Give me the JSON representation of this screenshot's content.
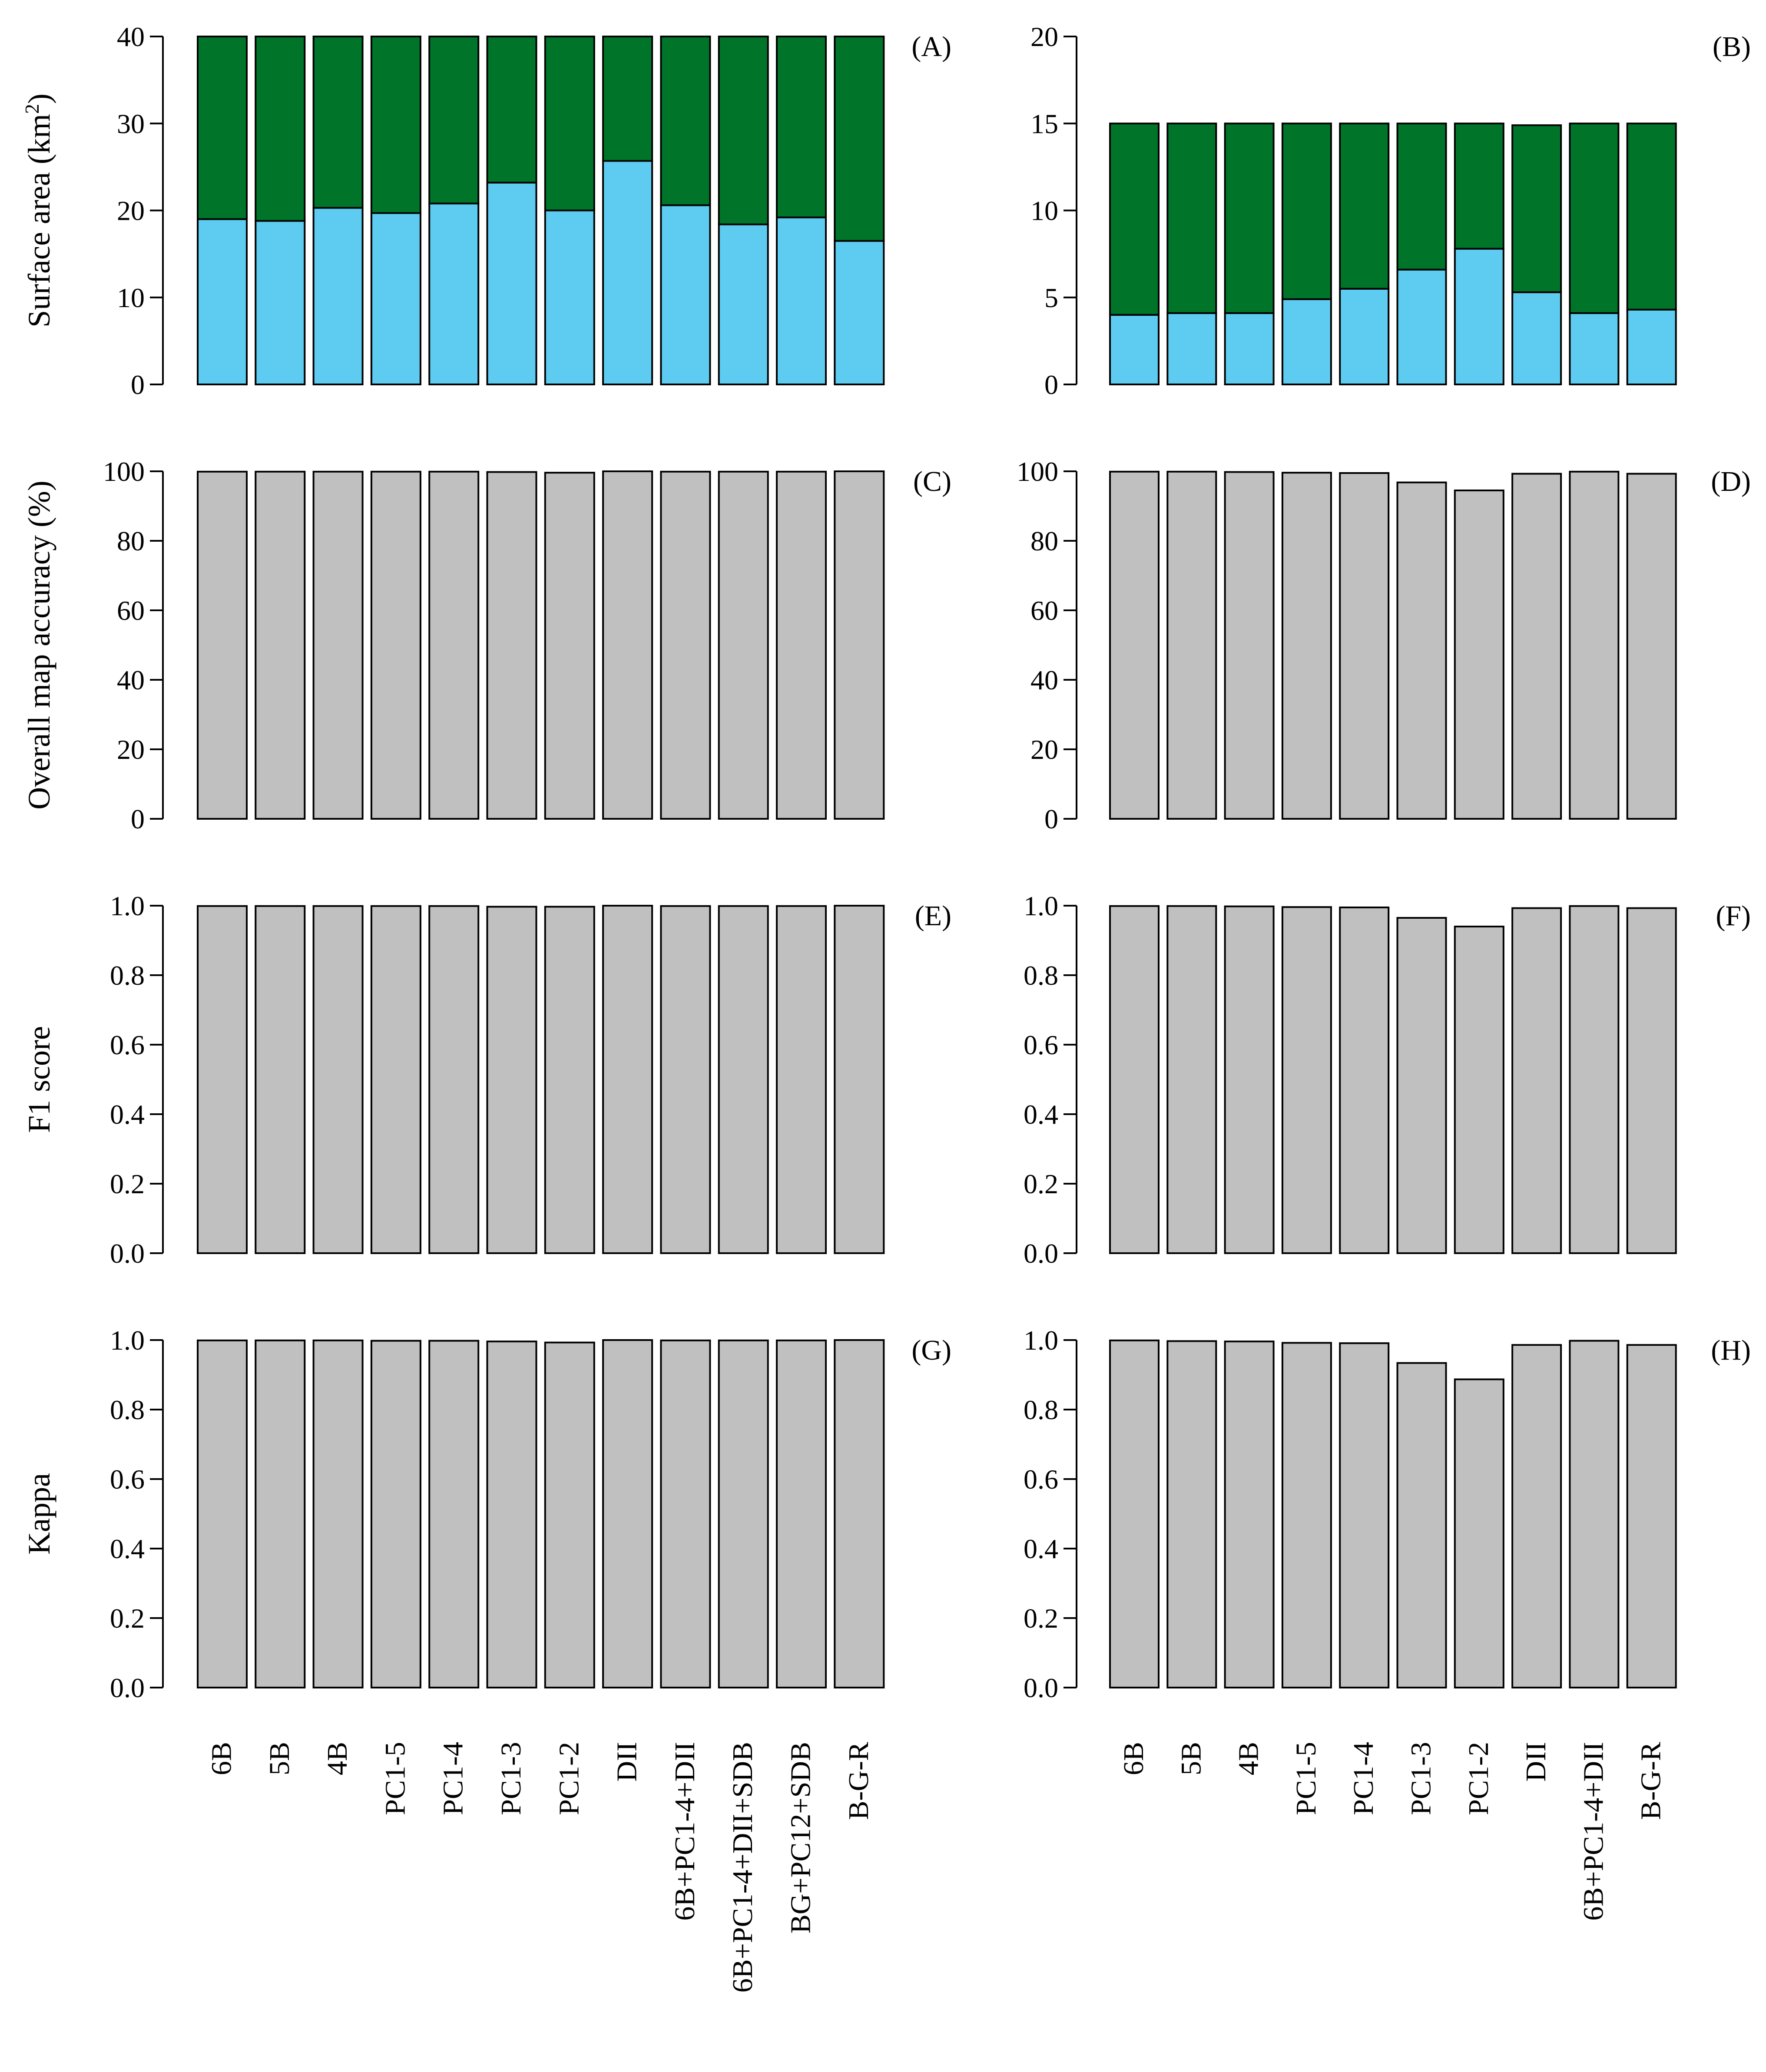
{
  "colors": {
    "water": "#5ecbf0",
    "vegetation": "#00752a",
    "accuracy": "#c0c0c0",
    "outline": "#000000"
  },
  "chart_data": [
    {
      "id": "A",
      "panel_label": "(A)",
      "type": "bar",
      "stacked": true,
      "ylabel": "Surface area (km",
      "ylabel_sup": "2",
      "ylabel_after": ")",
      "ylim": [
        0,
        40
      ],
      "yticks": [
        "0",
        "10",
        "20",
        "30",
        "40"
      ],
      "categories": [
        "6B",
        "5B",
        "4B",
        "PC1-5",
        "PC1-4",
        "PC1-3",
        "PC1-2",
        "DII",
        "6B+PC1-4+DII",
        "6B+PC1-4+DII+SDB",
        "BG+PC12+SDB",
        "B-G-R"
      ],
      "series": [
        {
          "color_key": "water",
          "values": [
            19.0,
            18.8,
            20.3,
            19.7,
            20.8,
            23.2,
            20.0,
            25.7,
            20.6,
            18.4,
            19.2,
            16.5
          ]
        },
        {
          "color_key": "vegetation",
          "values": [
            21.0,
            21.2,
            19.7,
            20.3,
            19.2,
            16.8,
            20.0,
            14.3,
            19.4,
            21.6,
            20.8,
            23.5
          ]
        }
      ]
    },
    {
      "id": "B",
      "panel_label": "(B)",
      "type": "bar",
      "stacked": true,
      "ylabel": "",
      "ylim": [
        0,
        20
      ],
      "yticks": [
        "0",
        "5",
        "10",
        "15",
        "20"
      ],
      "categories": [
        "6B",
        "5B",
        "4B",
        "PC1-5",
        "PC1-4",
        "PC1-3",
        "PC1-2",
        "DII",
        "6B+PC1-4+DII",
        "B-G-R"
      ],
      "series": [
        {
          "color_key": "water",
          "values": [
            4.0,
            4.1,
            4.1,
            4.9,
            5.5,
            6.6,
            7.8,
            5.3,
            4.1,
            4.3
          ]
        },
        {
          "color_key": "vegetation",
          "values": [
            11.0,
            10.9,
            10.9,
            10.1,
            9.5,
            8.4,
            7.2,
            9.6,
            10.9,
            10.7
          ]
        }
      ]
    },
    {
      "id": "C",
      "panel_label": "(C)",
      "type": "bar",
      "stacked": false,
      "ylabel": "Overall map accuracy (%)",
      "ylim": [
        0,
        100
      ],
      "yticks": [
        "0",
        "20",
        "40",
        "60",
        "80",
        "100"
      ],
      "categories": [
        "6B",
        "5B",
        "4B",
        "PC1-5",
        "PC1-4",
        "PC1-3",
        "PC1-2",
        "DII",
        "6B+PC1-4+DII",
        "6B+PC1-4+DII+SDB",
        "BG+PC12+SDB",
        "B-G-R"
      ],
      "series": [
        {
          "color_key": "accuracy",
          "values": [
            99.9,
            99.9,
            99.9,
            99.9,
            99.9,
            99.8,
            99.6,
            100.0,
            99.9,
            99.9,
            99.9,
            100.0
          ]
        }
      ]
    },
    {
      "id": "D",
      "panel_label": "(D)",
      "type": "bar",
      "stacked": false,
      "ylabel": "",
      "ylim": [
        0,
        100
      ],
      "yticks": [
        "0",
        "20",
        "40",
        "60",
        "80",
        "100"
      ],
      "categories": [
        "6B",
        "5B",
        "4B",
        "PC1-5",
        "PC1-4",
        "PC1-3",
        "PC1-2",
        "DII",
        "6B+PC1-4+DII",
        "B-G-R"
      ],
      "series": [
        {
          "color_key": "accuracy",
          "values": [
            99.9,
            99.9,
            99.8,
            99.6,
            99.5,
            96.8,
            94.5,
            99.3,
            99.9,
            99.3
          ]
        }
      ]
    },
    {
      "id": "E",
      "panel_label": "(E)",
      "type": "bar",
      "stacked": false,
      "ylabel": "F1 score",
      "ylim": [
        0,
        1
      ],
      "yticks": [
        "0.0",
        "0.2",
        "0.4",
        "0.6",
        "0.8",
        "1.0"
      ],
      "categories": [
        "6B",
        "5B",
        "4B",
        "PC1-5",
        "PC1-4",
        "PC1-3",
        "PC1-2",
        "DII",
        "6B+PC1-4+DII",
        "6B+PC1-4+DII+SDB",
        "BG+PC12+SDB",
        "B-G-R"
      ],
      "series": [
        {
          "color_key": "accuracy",
          "values": [
            0.999,
            0.999,
            0.999,
            0.999,
            0.999,
            0.997,
            0.997,
            1.0,
            0.999,
            0.999,
            0.999,
            1.0
          ]
        }
      ]
    },
    {
      "id": "F",
      "panel_label": "(F)",
      "type": "bar",
      "stacked": false,
      "ylabel": "",
      "ylim": [
        0,
        1
      ],
      "yticks": [
        "0.0",
        "0.2",
        "0.4",
        "0.6",
        "0.8",
        "1.0"
      ],
      "categories": [
        "6B",
        "5B",
        "4B",
        "PC1-5",
        "PC1-4",
        "PC1-3",
        "PC1-2",
        "DII",
        "6B+PC1-4+DII",
        "B-G-R"
      ],
      "series": [
        {
          "color_key": "accuracy",
          "values": [
            0.999,
            0.999,
            0.998,
            0.996,
            0.995,
            0.965,
            0.94,
            0.993,
            0.999,
            0.993
          ]
        }
      ]
    },
    {
      "id": "G",
      "panel_label": "(G)",
      "type": "bar",
      "stacked": false,
      "ylabel": "Kappa",
      "ylim": [
        0,
        1
      ],
      "yticks": [
        "0.0",
        "0.2",
        "0.4",
        "0.6",
        "0.8",
        "1.0"
      ],
      "categories": [
        "6B",
        "5B",
        "4B",
        "PC1-5",
        "PC1-4",
        "PC1-3",
        "PC1-2",
        "DII",
        "6B+PC1-4+DII",
        "6B+PC1-4+DII+SDB",
        "BG+PC12+SDB",
        "B-G-R"
      ],
      "series": [
        {
          "color_key": "accuracy",
          "values": [
            0.999,
            0.999,
            0.999,
            0.998,
            0.998,
            0.996,
            0.993,
            1.0,
            0.999,
            0.999,
            0.999,
            1.0
          ]
        }
      ]
    },
    {
      "id": "H",
      "panel_label": "(H)",
      "type": "bar",
      "stacked": false,
      "ylabel": "",
      "ylim": [
        0,
        1
      ],
      "yticks": [
        "0.0",
        "0.2",
        "0.4",
        "0.6",
        "0.8",
        "1.0"
      ],
      "categories": [
        "6B",
        "5B",
        "4B",
        "PC1-5",
        "PC1-4",
        "PC1-3",
        "PC1-2",
        "DII",
        "6B+PC1-4+DII",
        "B-G-R"
      ],
      "series": [
        {
          "color_key": "accuracy",
          "values": [
            0.999,
            0.997,
            0.996,
            0.992,
            0.991,
            0.934,
            0.887,
            0.986,
            0.998,
            0.986
          ]
        }
      ]
    }
  ]
}
